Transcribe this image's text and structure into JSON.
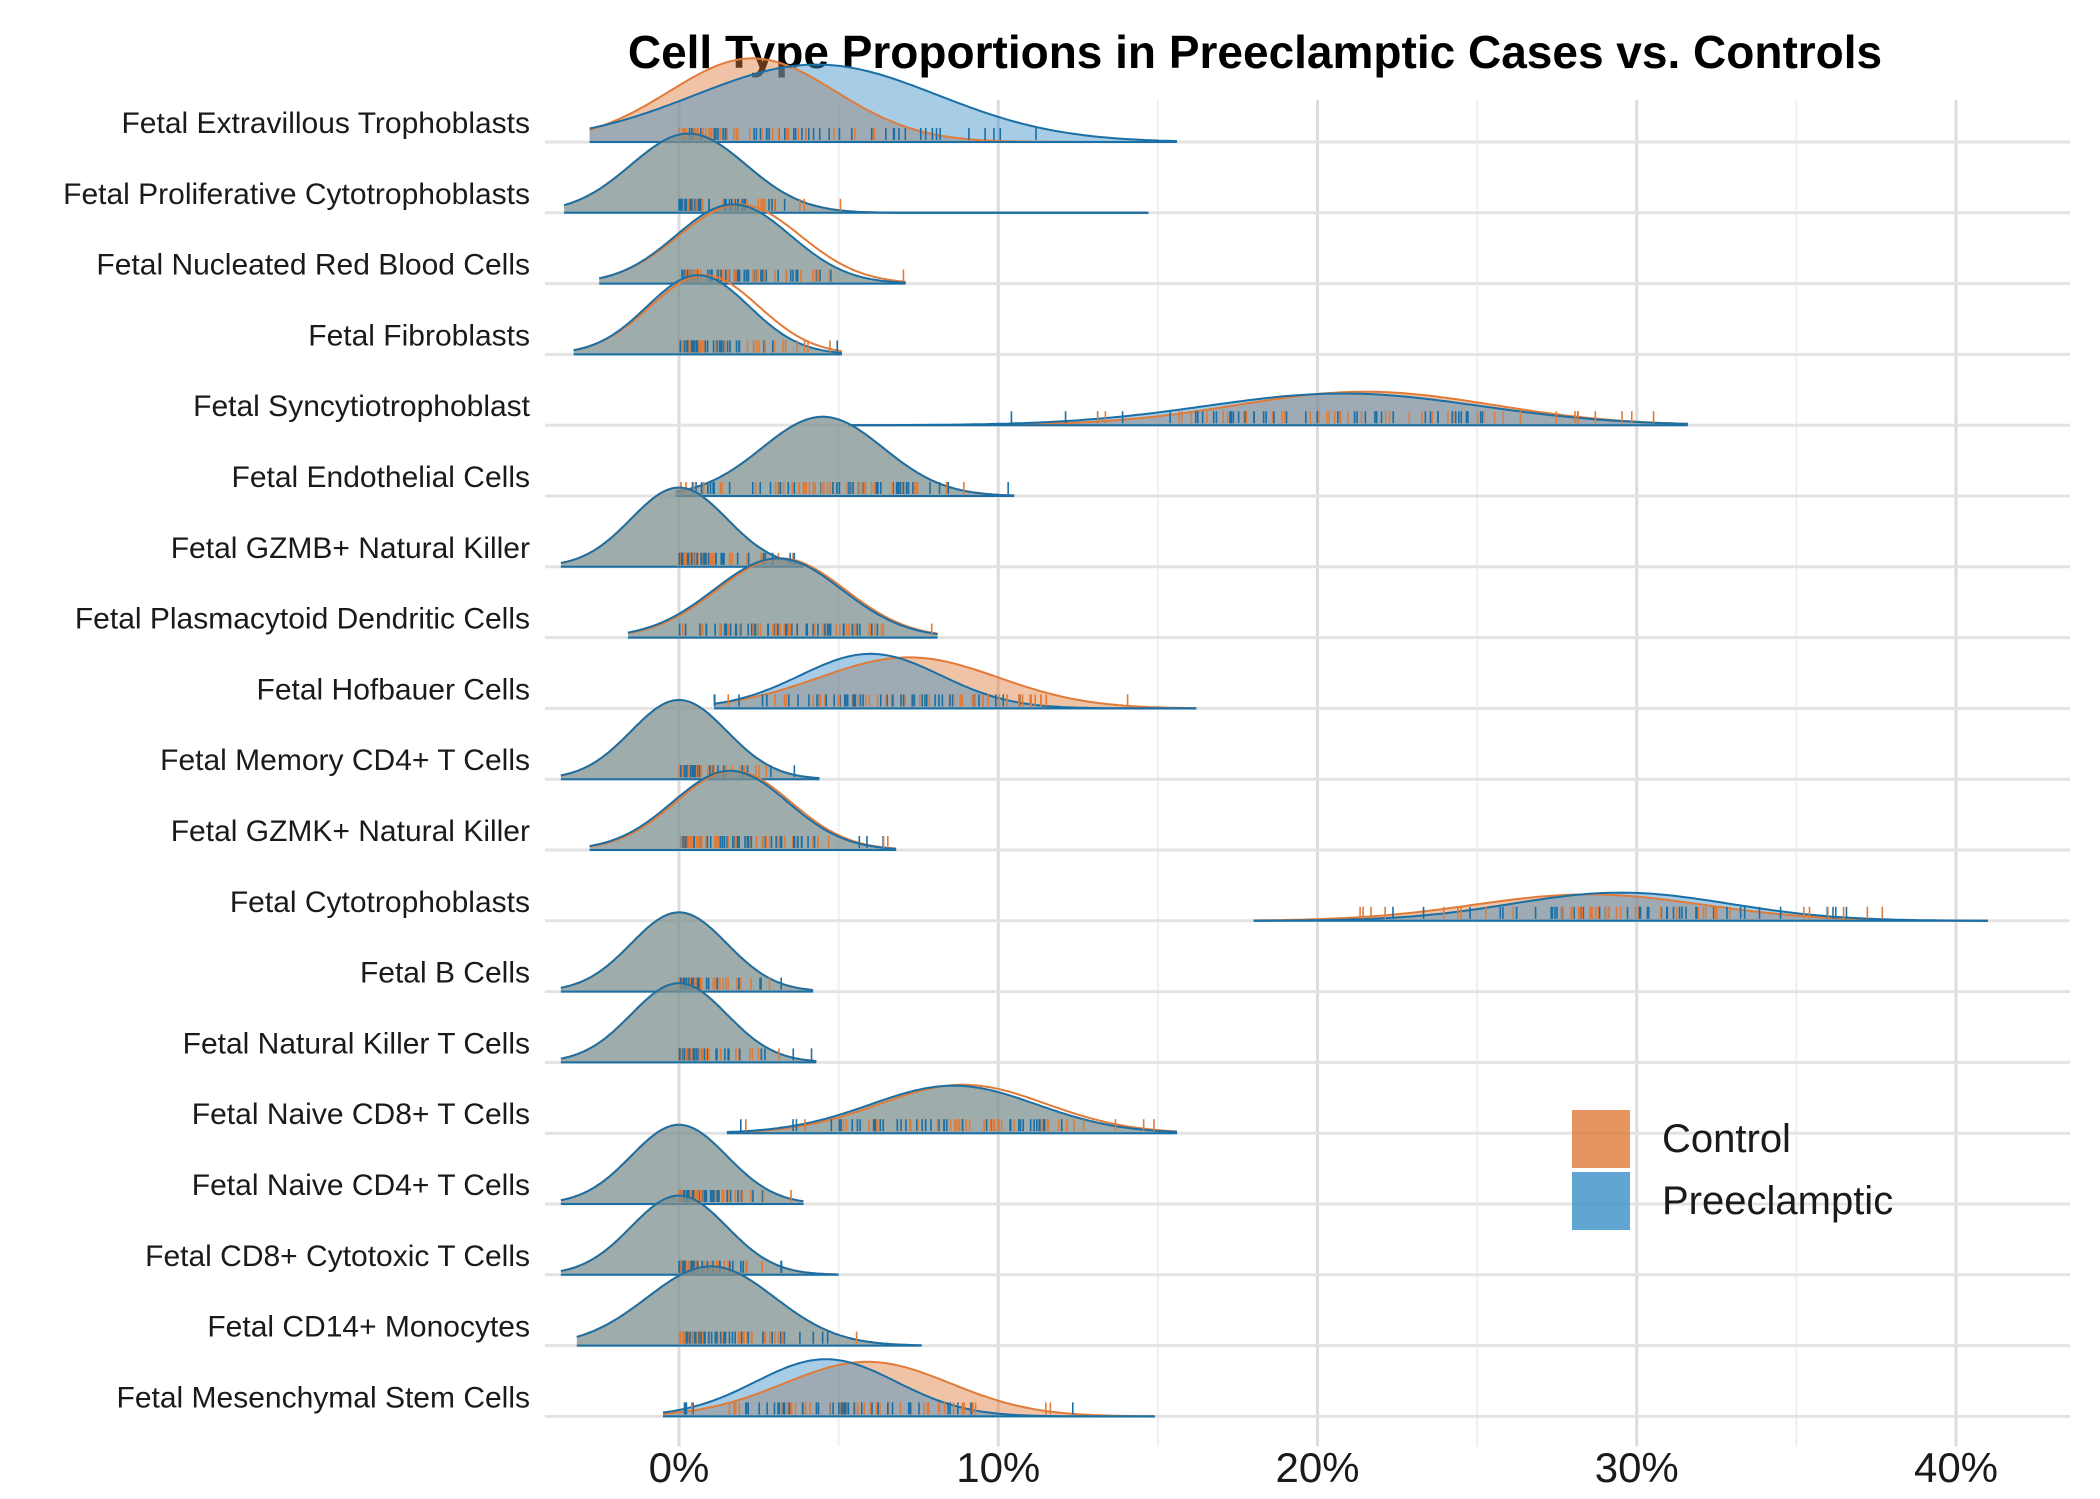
{
  "chart_data": {
    "type": "ridgeline",
    "title": "Cell Type Proportions in Preeclamptic Cases vs. Controls",
    "xlabel": "",
    "ylabel": "",
    "x_unit": "%",
    "xlim": [
      -4,
      43.5
    ],
    "x_ticks": [
      0,
      10,
      20,
      30,
      40
    ],
    "x_tick_labels": [
      "0%",
      "10%",
      "20%",
      "30%",
      "40%"
    ],
    "grid": true,
    "legend_position": "right, inside plot near bottom",
    "colors": {
      "Control": "#e07b39",
      "Preeclamptic": "#3a8fc8",
      "overlap": "#7f9090",
      "outline": "#1a6fa5"
    },
    "series": [
      {
        "name": "Control"
      },
      {
        "name": "Preeclamptic"
      }
    ],
    "categories": [
      {
        "name": "Fetal Extravillous Trophoblasts",
        "control": {
          "mean": 2.3,
          "sd": 2.6
        },
        "preeclamptic": {
          "mean": 4.3,
          "sd": 3.8
        },
        "range": [
          -2.8,
          15.6
        ],
        "control_peak": 0.95,
        "preeclamptic_peak": 0.88
      },
      {
        "name": "Fetal Proliferative Cytotrophoblasts",
        "control": {
          "mean": 0.3,
          "sd": 1.8
        },
        "preeclamptic": {
          "mean": 0.3,
          "sd": 1.8
        },
        "range": [
          -3.6,
          14.7
        ],
        "control_peak": 0.9,
        "preeclamptic_peak": 0.9
      },
      {
        "name": "Fetal Nucleated Red Blood Cells",
        "control": {
          "mean": 1.9,
          "sd": 1.9
        },
        "preeclamptic": {
          "mean": 1.7,
          "sd": 1.8
        },
        "range": [
          -2.5,
          7.1
        ],
        "control_peak": 0.9,
        "preeclamptic_peak": 0.9
      },
      {
        "name": "Fetal Fibroblasts",
        "control": {
          "mean": 0.8,
          "sd": 1.7
        },
        "preeclamptic": {
          "mean": 0.6,
          "sd": 1.6
        },
        "range": [
          -3.3,
          5.1
        ],
        "control_peak": 0.9,
        "preeclamptic_peak": 0.9
      },
      {
        "name": "Fetal Syncytiotrophoblast",
        "control": {
          "mean": 21.5,
          "sd": 4.0
        },
        "preeclamptic": {
          "mean": 20.8,
          "sd": 4.3
        },
        "range": [
          5.3,
          31.6
        ],
        "control_peak": 0.38,
        "preeclamptic_peak": 0.36
      },
      {
        "name": "Fetal Endothelial Cells",
        "control": {
          "mean": 4.5,
          "sd": 1.9
        },
        "preeclamptic": {
          "mean": 4.5,
          "sd": 1.9
        },
        "range": [
          -0.1,
          10.5
        ],
        "control_peak": 0.9,
        "preeclamptic_peak": 0.9
      },
      {
        "name": "Fetal GZMB+ Natural Killer",
        "control": {
          "mean": 0.0,
          "sd": 1.5
        },
        "preeclamptic": {
          "mean": 0.0,
          "sd": 1.5
        },
        "range": [
          -3.7,
          3.9
        ],
        "control_peak": 0.9,
        "preeclamptic_peak": 0.9
      },
      {
        "name": "Fetal Plasmacytoid Dendritic Cells",
        "control": {
          "mean": 3.2,
          "sd": 2.0
        },
        "preeclamptic": {
          "mean": 3.1,
          "sd": 2.0
        },
        "range": [
          -1.6,
          8.1
        ],
        "control_peak": 0.9,
        "preeclamptic_peak": 0.9
      },
      {
        "name": "Fetal Hofbauer Cells",
        "control": {
          "mean": 7.2,
          "sd": 2.8
        },
        "preeclamptic": {
          "mean": 6.0,
          "sd": 2.2
        },
        "range": [
          1.1,
          16.2
        ],
        "control_peak": 0.58,
        "preeclamptic_peak": 0.62
      },
      {
        "name": "Fetal Memory CD4+ T Cells",
        "control": {
          "mean": 0.0,
          "sd": 1.5
        },
        "preeclamptic": {
          "mean": 0.0,
          "sd": 1.5
        },
        "range": [
          -3.7,
          4.4
        ],
        "control_peak": 0.9,
        "preeclamptic_peak": 0.9
      },
      {
        "name": "Fetal GZMK+ Natural Killer",
        "control": {
          "mean": 1.7,
          "sd": 1.8
        },
        "preeclamptic": {
          "mean": 1.6,
          "sd": 1.8
        },
        "range": [
          -2.8,
          6.8
        ],
        "control_peak": 0.9,
        "preeclamptic_peak": 0.9
      },
      {
        "name": "Fetal Cytotrophoblasts",
        "control": {
          "mean": 28.5,
          "sd": 3.6
        },
        "preeclamptic": {
          "mean": 29.5,
          "sd": 3.4
        },
        "range": [
          18.0,
          41.0
        ],
        "control_peak": 0.3,
        "preeclamptic_peak": 0.32
      },
      {
        "name": "Fetal B Cells",
        "control": {
          "mean": 0.0,
          "sd": 1.5
        },
        "preeclamptic": {
          "mean": 0.0,
          "sd": 1.5
        },
        "range": [
          -3.7,
          4.2
        ],
        "control_peak": 0.9,
        "preeclamptic_peak": 0.9
      },
      {
        "name": "Fetal Natural Killer T Cells",
        "control": {
          "mean": 0.0,
          "sd": 1.5
        },
        "preeclamptic": {
          "mean": 0.0,
          "sd": 1.5
        },
        "range": [
          -3.7,
          4.3
        ],
        "control_peak": 0.9,
        "preeclamptic_peak": 0.9
      },
      {
        "name": "Fetal Naive CD8+ T Cells",
        "control": {
          "mean": 8.9,
          "sd": 2.6
        },
        "preeclamptic": {
          "mean": 8.6,
          "sd": 2.6
        },
        "range": [
          1.5,
          15.6
        ],
        "control_peak": 0.55,
        "preeclamptic_peak": 0.54
      },
      {
        "name": "Fetal Naive CD4+ T Cells",
        "control": {
          "mean": 0.0,
          "sd": 1.5
        },
        "preeclamptic": {
          "mean": 0.0,
          "sd": 1.5
        },
        "range": [
          -3.7,
          3.9
        ],
        "control_peak": 0.9,
        "preeclamptic_peak": 0.9
      },
      {
        "name": "Fetal CD8+ Cytotoxic T Cells",
        "control": {
          "mean": 0.0,
          "sd": 1.5
        },
        "preeclamptic": {
          "mean": 0.0,
          "sd": 1.5
        },
        "range": [
          -3.7,
          5.0
        ],
        "control_peak": 0.9,
        "preeclamptic_peak": 0.9
      },
      {
        "name": "Fetal CD14+ Monocytes",
        "control": {
          "mean": 1.0,
          "sd": 2.0
        },
        "preeclamptic": {
          "mean": 1.0,
          "sd": 2.0
        },
        "range": [
          -3.2,
          7.6
        ],
        "control_peak": 0.9,
        "preeclamptic_peak": 0.9
      },
      {
        "name": "Fetal Mesenchymal Stem Cells",
        "control": {
          "mean": 5.9,
          "sd": 2.6
        },
        "preeclamptic": {
          "mean": 4.6,
          "sd": 2.2
        },
        "range": [
          -0.5,
          14.9
        ],
        "control_peak": 0.62,
        "preeclamptic_peak": 0.65
      }
    ]
  }
}
